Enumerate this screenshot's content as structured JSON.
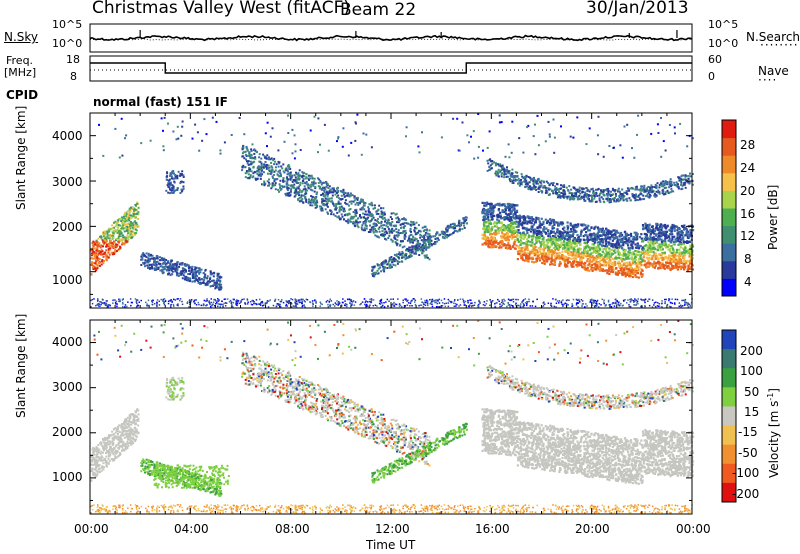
{
  "header": {
    "title": "Christmas Valley West (fitACF)",
    "beam": "Beam 22",
    "date": "30/Jan/2013"
  },
  "panels": {
    "nsky_label": "N.Sky",
    "nsky_ticks": [
      "10^5",
      "10^0"
    ],
    "nsearch_label": "N.Search",
    "freq_label_1": "Freq.",
    "freq_label_2": "[MHz]",
    "freq_ticks": [
      "18",
      "8"
    ],
    "nave_label": "Nave",
    "nave_ticks": [
      "60",
      "0"
    ],
    "cpid_label": "CPID",
    "cpid_text": "normal (fast) 151 IF"
  },
  "colors": {
    "power": [
      "#0000ff",
      "#2a3a9c",
      "#3a6fa0",
      "#3f8f70",
      "#4fae50",
      "#a8d34a",
      "#f5c14a",
      "#ef8a2a",
      "#e65a1f",
      "#e01c10"
    ],
    "velocity": [
      "#2244bb",
      "#3a7a70",
      "#3aa040",
      "#7fd040",
      "#c8c8c0",
      "#f0c050",
      "#f09030",
      "#f05a20",
      "#e01010"
    ],
    "ground": "#c6c6c0"
  },
  "chart_data": [
    {
      "type": "heatmap",
      "title": "",
      "xlabel": "Time UT",
      "ylabel": "Slant Range [km]",
      "xlim": [
        0,
        24
      ],
      "ylim": [
        200,
        4500
      ],
      "xticks": [
        "00:00",
        "04:00",
        "08:00",
        "12:00",
        "16:00",
        "20:00",
        "00:00"
      ],
      "yticks": [
        1000,
        2000,
        3000,
        4000
      ],
      "colorbar": {
        "label": "Power [dB]",
        "ticks": [
          "28",
          "24",
          "20",
          "16",
          "12",
          "8",
          "4"
        ],
        "range": [
          0,
          30
        ]
      }
    },
    {
      "type": "heatmap",
      "title": "",
      "xlabel": "Time UT",
      "ylabel": "Slant Range [km]",
      "xlim": [
        0,
        24
      ],
      "ylim": [
        200,
        4500
      ],
      "xticks": [
        "00:00",
        "04:00",
        "08:00",
        "12:00",
        "16:00",
        "20:00",
        "00:00"
      ],
      "yticks": [
        1000,
        2000,
        3000,
        4000
      ],
      "colorbar": {
        "label": "Velocity [m s^-1]",
        "ticks": [
          "200",
          "100",
          "50",
          "15",
          "-15",
          "-50",
          "-100",
          "-200"
        ]
      }
    }
  ]
}
